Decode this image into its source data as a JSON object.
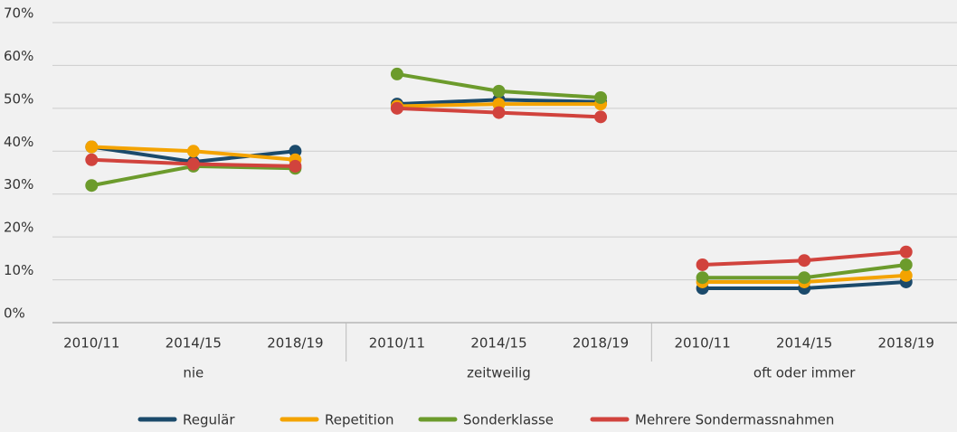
{
  "chart_data": {
    "type": "line",
    "categories": [
      "2010/11",
      "2014/15",
      "2018/19",
      "2010/11",
      "2014/15",
      "2018/19",
      "2010/11",
      "2014/15",
      "2018/19"
    ],
    "groups": [
      "nie",
      "zeitweilig",
      "oft oder immer"
    ],
    "series": [
      {
        "name": "Regulär",
        "color": "#1b4a6b",
        "values": [
          41,
          37.5,
          40,
          51,
          52,
          51.5,
          8,
          8,
          9.5
        ]
      },
      {
        "name": "Repetition",
        "color": "#f4a300",
        "values": [
          41,
          40,
          38,
          50.5,
          51,
          51,
          9.5,
          9.5,
          11
        ]
      },
      {
        "name": "Sonderklasse",
        "color": "#6c9b2c",
        "values": [
          32,
          36.5,
          36,
          58,
          54,
          52.5,
          10.5,
          10.5,
          13.5
        ]
      },
      {
        "name": "Mehrere Sondermassnahmen",
        "color": "#d1433d",
        "values": [
          38,
          37,
          36.5,
          50,
          49,
          48,
          13.5,
          14.5,
          16.5
        ]
      }
    ],
    "ylim": [
      0,
      70
    ],
    "yticks": [
      {
        "value": 0,
        "label": "0%"
      },
      {
        "value": 10,
        "label": "10%"
      },
      {
        "value": 20,
        "label": "20%"
      },
      {
        "value": 30,
        "label": "30%"
      },
      {
        "value": 40,
        "label": "40%"
      },
      {
        "value": 50,
        "label": "50%"
      },
      {
        "value": 60,
        "label": "60%"
      },
      {
        "value": 70,
        "label": "70%"
      }
    ],
    "grid": true,
    "legend": "bottom"
  }
}
